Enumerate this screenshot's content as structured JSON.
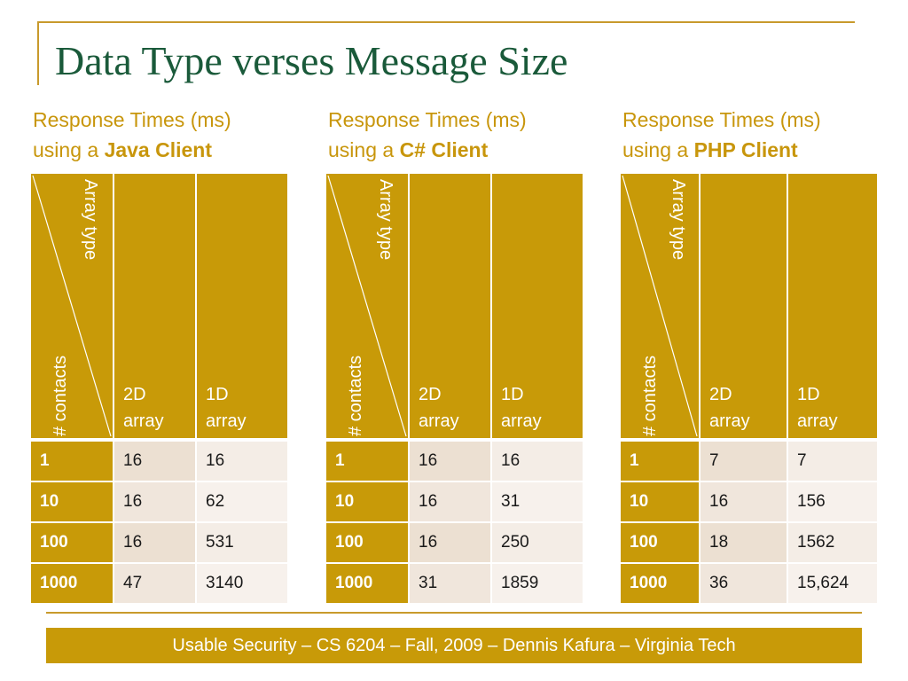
{
  "title": "Data Type verses Message Size",
  "header_labels": {
    "array_type": "Array type",
    "contacts": "# contacts",
    "col_2d": [
      "2D",
      "array"
    ],
    "col_1d": [
      "1D",
      "array"
    ]
  },
  "tables": [
    {
      "caption_line1": "Response Times (ms)",
      "caption_prefix": "using a ",
      "caption_bold": "Java Client",
      "rows": [
        {
          "contacts": "1",
          "two_d": "16",
          "one_d": "16"
        },
        {
          "contacts": "10",
          "two_d": "16",
          "one_d": "62"
        },
        {
          "contacts": "100",
          "two_d": "16",
          "one_d": "531"
        },
        {
          "contacts": "1000",
          "two_d": "47",
          "one_d": "3140"
        }
      ]
    },
    {
      "caption_line1": "Response Times (ms)",
      "caption_prefix": "using a ",
      "caption_bold": "C# Client",
      "rows": [
        {
          "contacts": "1",
          "two_d": "16",
          "one_d": "16"
        },
        {
          "contacts": "10",
          "two_d": "16",
          "one_d": "31"
        },
        {
          "contacts": "100",
          "two_d": "16",
          "one_d": "250"
        },
        {
          "contacts": "1000",
          "two_d": "31",
          "one_d": "1859"
        }
      ]
    },
    {
      "caption_line1": "Response Times (ms)",
      "caption_prefix": "using a ",
      "caption_bold": "PHP Client",
      "rows": [
        {
          "contacts": "1",
          "two_d": "7",
          "one_d": "7"
        },
        {
          "contacts": "10",
          "two_d": "16",
          "one_d": "156"
        },
        {
          "contacts": "100",
          "two_d": "18",
          "one_d": "1562"
        },
        {
          "contacts": "1000",
          "two_d": "36",
          "one_d": "15,624"
        }
      ]
    }
  ],
  "footer": "Usable Security – CS 6204 – Fall, 2009 – Dennis Kafura – Virginia Tech",
  "colors": {
    "accent_gold": "#c89a08",
    "title_green": "#1a5a3a",
    "caption_gold": "#c8960c",
    "cell_light": "#f4ede6"
  }
}
